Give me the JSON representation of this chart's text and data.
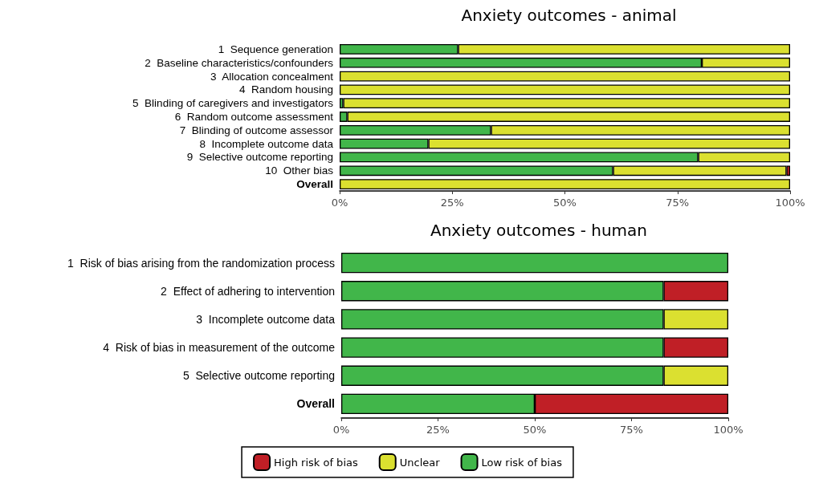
{
  "chart_data": [
    {
      "type": "bar",
      "title": "Anxiety outcomes - animal",
      "orientation": "horizontal",
      "stacked": true,
      "categories": [
        "1  Sequence generation",
        "2  Baseline characteristics/confounders",
        "3  Allocation concealment",
        "4  Random housing",
        "5  Blinding of caregivers and investigators",
        "6  Random outcome assessment",
        "7  Blinding of outcome assessor",
        "8  Incomplete outcome data",
        "9  Selective outcome reporting",
        "10  Other bias",
        "Overall"
      ],
      "series": [
        {
          "color": "#41b64a",
          "values": [
            26.3,
            80.4,
            0,
            0,
            0.8,
            1.7,
            33.6,
            19.7,
            79.6,
            60.7,
            0
          ]
        },
        {
          "color": "#dbe030",
          "values": [
            73.7,
            19.6,
            100,
            100,
            99.2,
            98.3,
            66.4,
            80.3,
            20.4,
            38.5,
            100
          ]
        },
        {
          "color": "#c01f26",
          "values": [
            0,
            0,
            0,
            0,
            0,
            0,
            0,
            0,
            0,
            0.8,
            0
          ]
        }
      ],
      "xlim": [
        0,
        100
      ],
      "xticks": [
        {
          "value": 0,
          "label": "0%"
        },
        {
          "value": 25,
          "label": "25%"
        },
        {
          "value": 50,
          "label": "50%"
        },
        {
          "value": 75,
          "label": "75%"
        },
        {
          "value": 100,
          "label": "100%"
        }
      ],
      "grid": false,
      "legend": false
    },
    {
      "type": "bar",
      "title": "Anxiety outcomes - human",
      "orientation": "horizontal",
      "stacked": true,
      "categories": [
        "1  Risk of bias arising from the randomization process",
        "2  Effect of adhering to intervention",
        "3  Incomplete outcome data",
        "4  Risk of bias in measurement of the outcome",
        "5  Selective outcome reporting",
        "Overall"
      ],
      "series": [
        {
          "name": "Low risk of bias",
          "color": "#41b64a",
          "values": [
            100,
            83.3,
            83.3,
            83.3,
            83.3,
            50
          ]
        },
        {
          "name": "Unclear",
          "color": "#dbe030",
          "values": [
            0,
            0,
            16.7,
            0,
            16.7,
            0
          ]
        },
        {
          "name": "High risk of bias",
          "color": "#c01f26",
          "values": [
            0,
            16.7,
            0,
            16.7,
            0,
            50
          ]
        }
      ],
      "xlim": [
        0,
        100
      ],
      "xticks": [
        {
          "value": 0,
          "label": "0%"
        },
        {
          "value": 25,
          "label": "25%"
        },
        {
          "value": 50,
          "label": "50%"
        },
        {
          "value": 75,
          "label": "75%"
        },
        {
          "value": 100,
          "label": "100%"
        }
      ],
      "grid": false,
      "legend": "bottom"
    }
  ]
}
